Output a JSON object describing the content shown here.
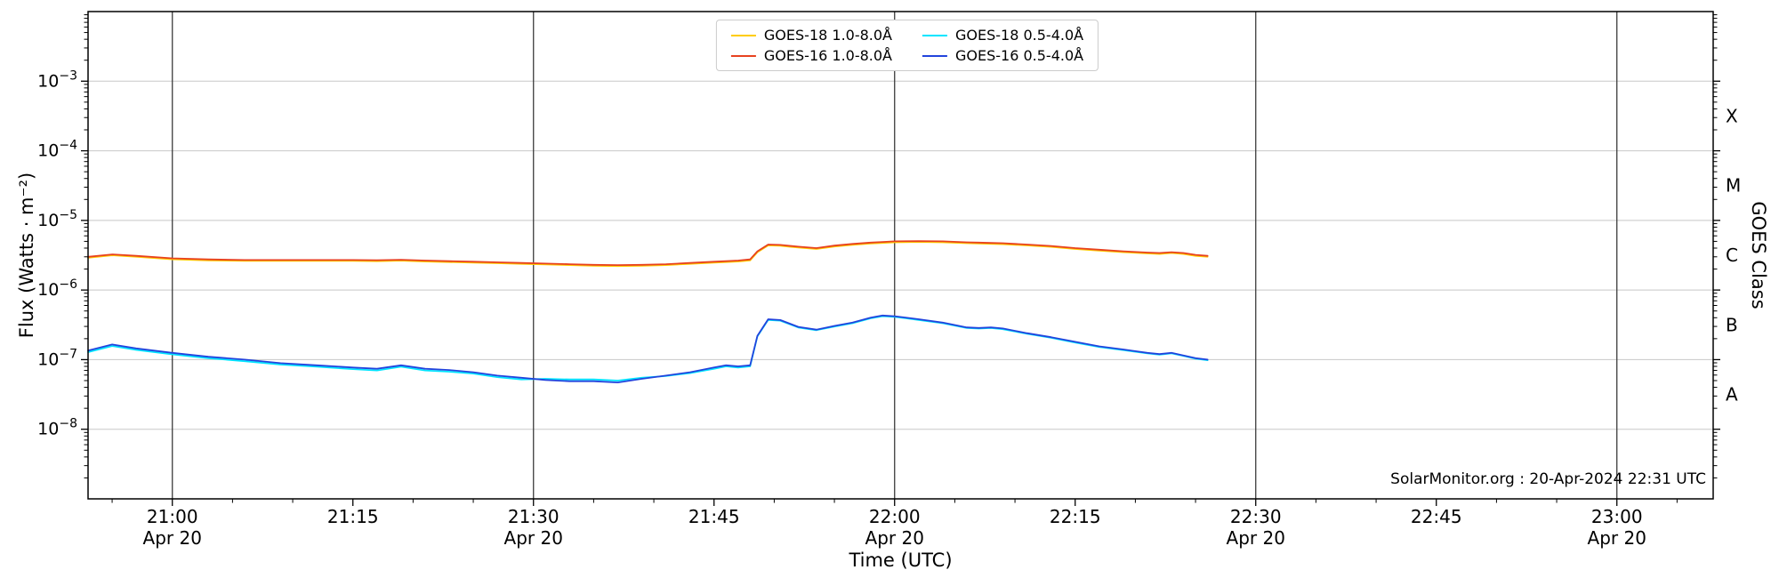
{
  "figure": {
    "background": "#ffffff"
  },
  "chart_data": {
    "type": "line",
    "title": "",
    "xlabel": "Time (UTC)",
    "ylabel": "Flux (Watts · m⁻²)",
    "ylabel_right": "GOES Class",
    "annotation": "SolarMonitor.org : 20-Apr-2024 22:31 UTC",
    "grid_on": true,
    "grid_color": "#c8c8c8",
    "dateline_color": "#3c3c3c",
    "legend_position": "top-center",
    "x_axis": {
      "unit": "minutes from 21:00 UTC, 20-Apr-2024",
      "lim": [
        -7,
        128
      ],
      "minor_tick_step": 5,
      "date_line_times": [
        0,
        30,
        60,
        90,
        120
      ],
      "major_ticks": [
        {
          "t": 0,
          "label": "21:00",
          "sublabel": "Apr 20"
        },
        {
          "t": 15,
          "label": "21:15",
          "sublabel": ""
        },
        {
          "t": 30,
          "label": "21:30",
          "sublabel": "Apr 20"
        },
        {
          "t": 45,
          "label": "21:45",
          "sublabel": ""
        },
        {
          "t": 60,
          "label": "22:00",
          "sublabel": "Apr 20"
        },
        {
          "t": 75,
          "label": "22:15",
          "sublabel": ""
        },
        {
          "t": 90,
          "label": "22:30",
          "sublabel": "Apr 20"
        },
        {
          "t": 105,
          "label": "22:45",
          "sublabel": ""
        },
        {
          "t": 120,
          "label": "23:00",
          "sublabel": "Apr 20"
        }
      ]
    },
    "y_axis": {
      "scale": "log",
      "lim": [
        1e-09,
        0.01
      ],
      "major_ticks": [
        {
          "value": 0.001,
          "base": "10",
          "exp": "−3"
        },
        {
          "value": 0.0001,
          "base": "10",
          "exp": "−4"
        },
        {
          "value": 1e-05,
          "base": "10",
          "exp": "−5"
        },
        {
          "value": 1e-06,
          "base": "10",
          "exp": "−6"
        },
        {
          "value": 1e-07,
          "base": "10",
          "exp": "−7"
        },
        {
          "value": 1e-08,
          "base": "10",
          "exp": "−8"
        }
      ]
    },
    "right_axis": {
      "class_ticks": [
        {
          "value": 0.000316,
          "label": "X"
        },
        {
          "value": 3.16e-05,
          "label": "M"
        },
        {
          "value": 3.16e-06,
          "label": "C"
        },
        {
          "value": 3.16e-07,
          "label": "B"
        },
        {
          "value": 3.16e-08,
          "label": "A"
        }
      ]
    },
    "series": [
      {
        "name": "GOES-18 1.0-8.0Å",
        "color": "#ffcc00",
        "unit_scale": 1e-06,
        "x": [
          -7,
          -5,
          -3,
          0,
          3,
          6,
          9,
          12,
          15,
          17,
          19,
          21,
          23,
          25,
          27,
          29,
          31,
          33,
          35,
          37,
          39,
          41,
          43,
          45,
          46,
          47,
          48,
          48.6,
          49.5,
          50.5,
          52,
          53.5,
          55,
          56.5,
          58,
          59,
          60,
          62,
          64,
          66,
          67,
          68,
          69,
          71,
          73,
          75,
          77,
          79,
          81,
          82,
          83,
          84,
          85,
          86
        ],
        "values": [
          2.91,
          3.15,
          3.01,
          2.76,
          2.67,
          2.62,
          2.62,
          2.62,
          2.62,
          2.6,
          2.64,
          2.57,
          2.52,
          2.47,
          2.43,
          2.38,
          2.33,
          2.28,
          2.23,
          2.21,
          2.23,
          2.28,
          2.38,
          2.47,
          2.52,
          2.57,
          2.67,
          3.49,
          4.37,
          4.32,
          4.07,
          3.88,
          4.22,
          4.46,
          4.66,
          4.75,
          4.85,
          4.9,
          4.85,
          4.7,
          4.66,
          4.61,
          4.56,
          4.37,
          4.17,
          3.88,
          3.69,
          3.49,
          3.35,
          3.3,
          3.4,
          3.3,
          3.1,
          3.01
        ]
      },
      {
        "name": "GOES-16 1.0-8.0Å",
        "color": "#e8421f",
        "unit_scale": 1e-06,
        "x": [
          -7,
          -5,
          -3,
          0,
          3,
          6,
          9,
          12,
          15,
          17,
          19,
          21,
          23,
          25,
          27,
          29,
          31,
          33,
          35,
          37,
          39,
          41,
          43,
          45,
          46,
          47,
          48,
          48.6,
          49.5,
          50.5,
          52,
          53.5,
          55,
          56.5,
          58,
          59,
          60,
          62,
          64,
          66,
          67,
          68,
          69,
          71,
          73,
          75,
          77,
          79,
          81,
          82,
          83,
          84,
          85,
          86
        ],
        "values": [
          3.0,
          3.25,
          3.1,
          2.85,
          2.75,
          2.7,
          2.7,
          2.7,
          2.7,
          2.68,
          2.72,
          2.65,
          2.6,
          2.55,
          2.5,
          2.45,
          2.4,
          2.35,
          2.3,
          2.28,
          2.3,
          2.35,
          2.45,
          2.55,
          2.6,
          2.65,
          2.75,
          3.6,
          4.5,
          4.45,
          4.2,
          4.0,
          4.35,
          4.6,
          4.8,
          4.9,
          5.0,
          5.05,
          5.0,
          4.85,
          4.8,
          4.75,
          4.7,
          4.5,
          4.3,
          4.0,
          3.8,
          3.6,
          3.45,
          3.4,
          3.5,
          3.4,
          3.2,
          3.1
        ]
      },
      {
        "name": "GOES-18 0.5-4.0Å",
        "color": "#00e5ff",
        "unit_scale": 1e-07,
        "x": [
          -7,
          -5,
          -3,
          0,
          3,
          6,
          9,
          12,
          15,
          17,
          19,
          21,
          23,
          25,
          27,
          29,
          31,
          33,
          35,
          37,
          39,
          41,
          43,
          45,
          46,
          47,
          48,
          48.6,
          49.5,
          50.5,
          52,
          53.5,
          55,
          56.5,
          58,
          59,
          60,
          62,
          64,
          66,
          67,
          68,
          69,
          71,
          73,
          75,
          77,
          79,
          81,
          82,
          83,
          84,
          85,
          86
        ],
        "values": [
          1.28,
          1.57,
          1.38,
          1.19,
          1.05,
          0.95,
          0.85,
          0.79,
          0.73,
          0.7,
          0.79,
          0.7,
          0.67,
          0.63,
          0.56,
          0.52,
          0.53,
          0.52,
          0.52,
          0.5,
          0.55,
          0.58,
          0.64,
          0.74,
          0.8,
          0.77,
          0.8,
          2.16,
          3.72,
          3.63,
          2.89,
          2.65,
          2.99,
          3.33,
          3.92,
          4.21,
          4.12,
          3.72,
          3.33,
          2.84,
          2.79,
          2.84,
          2.74,
          2.35,
          2.06,
          1.76,
          1.52,
          1.37,
          1.23,
          1.18,
          1.23,
          1.13,
          1.03,
          0.98
        ]
      },
      {
        "name": "GOES-16 0.5-4.0Å",
        "color": "#2244dd",
        "unit_scale": 1e-07,
        "x": [
          -7,
          -5,
          -3,
          0,
          3,
          6,
          9,
          12,
          15,
          17,
          19,
          21,
          23,
          25,
          27,
          29,
          31,
          33,
          35,
          37,
          39,
          41,
          43,
          45,
          46,
          47,
          48,
          48.6,
          49.5,
          50.5,
          52,
          53.5,
          55,
          56.5,
          58,
          59,
          60,
          62,
          64,
          66,
          67,
          68,
          69,
          71,
          73,
          75,
          77,
          79,
          81,
          82,
          83,
          84,
          85,
          86
        ],
        "values": [
          1.35,
          1.65,
          1.45,
          1.25,
          1.1,
          1.0,
          0.89,
          0.83,
          0.77,
          0.74,
          0.83,
          0.74,
          0.71,
          0.66,
          0.59,
          0.55,
          0.51,
          0.49,
          0.49,
          0.47,
          0.53,
          0.59,
          0.66,
          0.77,
          0.83,
          0.8,
          0.83,
          2.2,
          3.8,
          3.7,
          2.95,
          2.7,
          3.05,
          3.4,
          4.0,
          4.3,
          4.2,
          3.8,
          3.4,
          2.9,
          2.85,
          2.9,
          2.8,
          2.4,
          2.1,
          1.8,
          1.55,
          1.4,
          1.25,
          1.2,
          1.25,
          1.15,
          1.05,
          1.0
        ]
      }
    ]
  }
}
